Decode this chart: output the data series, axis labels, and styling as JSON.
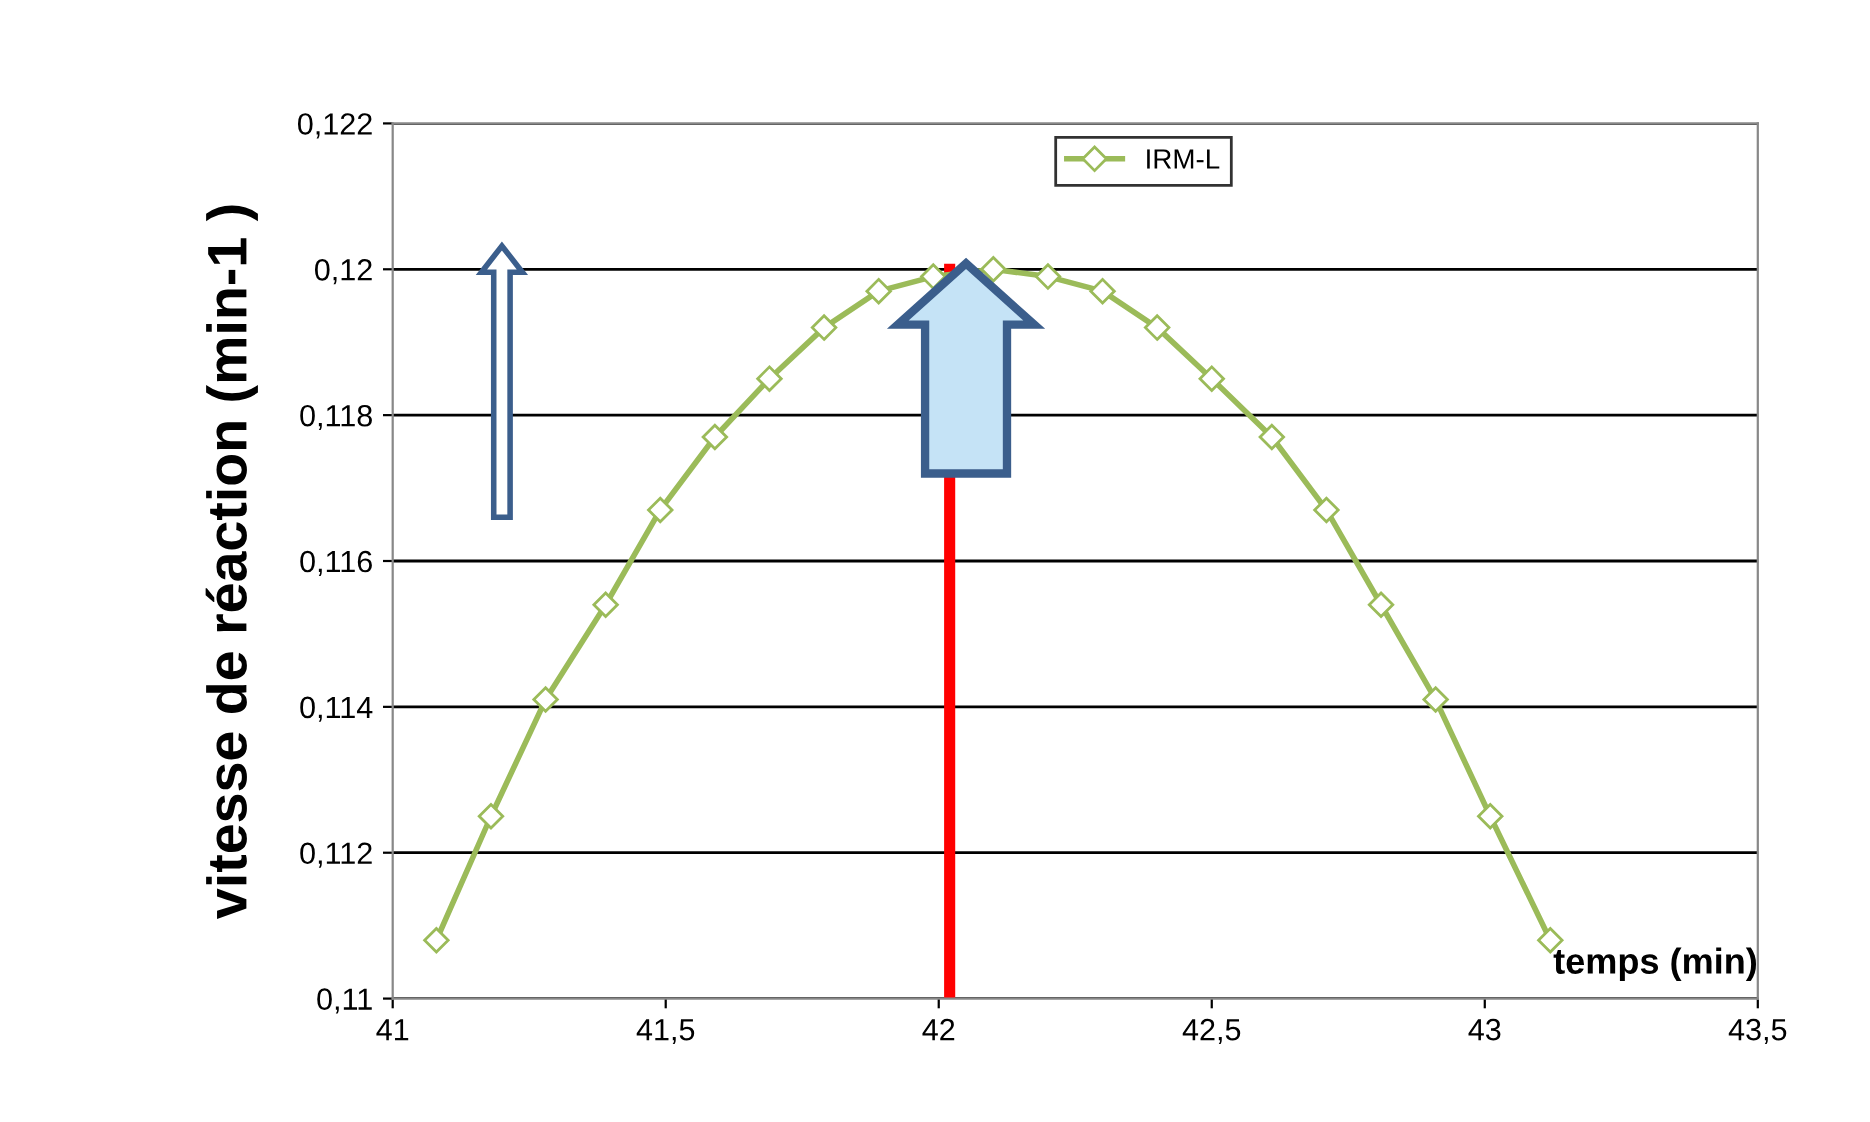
{
  "chart_data": {
    "type": "line",
    "xlabel": "temps (min)",
    "ylabel": "vitesse de réaction (min-1 )",
    "x": [
      41.08,
      41.18,
      41.28,
      41.39,
      41.49,
      41.59,
      41.69,
      41.79,
      41.89,
      41.99,
      42.1,
      42.2,
      42.3,
      42.4,
      42.5,
      42.61,
      42.71,
      42.81,
      42.91,
      43.01,
      43.12
    ],
    "series": [
      {
        "name": "IRM-L",
        "color": "#9bbb59",
        "values": [
          0.1108,
          0.1125,
          0.1141,
          0.1154,
          0.1167,
          0.1177,
          0.1185,
          0.1192,
          0.1197,
          0.1199,
          0.12,
          0.1199,
          0.1197,
          0.1192,
          0.1185,
          0.1177,
          0.1167,
          0.1154,
          0.1141,
          0.1125,
          0.1108
        ]
      }
    ],
    "xlim": [
      41,
      43.5
    ],
    "ylim": [
      0.11,
      0.122
    ],
    "xticks": [
      41,
      {
        "value": 41.5,
        "label": "41,5"
      },
      42,
      {
        "value": 42.5,
        "label": "42,5"
      },
      43,
      {
        "value": 43.5,
        "label": "43,5"
      }
    ],
    "yticks": [
      {
        "value": 0.11,
        "label": "0,11"
      },
      {
        "value": 0.112,
        "label": "0,112"
      },
      {
        "value": 0.114,
        "label": "0,114"
      },
      {
        "value": 0.116,
        "label": "0,116"
      },
      {
        "value": 0.118,
        "label": "0,118"
      },
      {
        "value": 0.12,
        "label": "0,12"
      },
      {
        "value": 0.122,
        "label": "0,122"
      }
    ],
    "ref_lines": [
      {
        "axis": "x",
        "value": 42.02,
        "color": "#ff0000"
      }
    ],
    "grid": "y",
    "legend": "top",
    "marker": "diamond",
    "line_style": "solid"
  }
}
